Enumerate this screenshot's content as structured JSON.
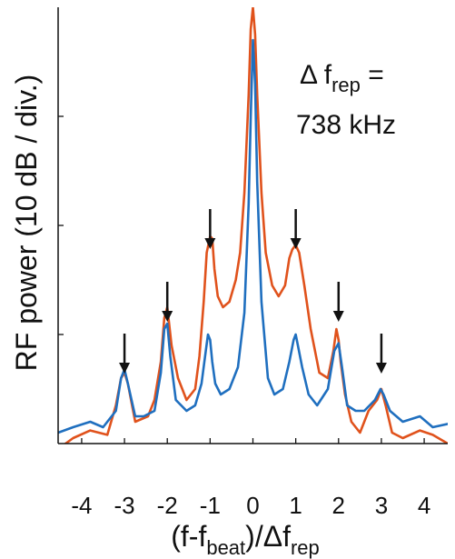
{
  "chart_data": {
    "type": "line",
    "title": "",
    "xlabel": "(f-f_beat)/Δf_rep",
    "ylabel": "RF power (10 dB / div.)",
    "x_ticks": [
      -4,
      -3,
      -2,
      -1,
      0,
      1,
      2,
      3,
      4
    ],
    "xlim": [
      -4.55,
      4.55
    ],
    "ylim": [
      0,
      4
    ],
    "grid": false,
    "legend": "none",
    "annotation": {
      "lines": [
        "Δ f_rep =",
        "738 kHz"
      ]
    },
    "arrows_at_x": [
      -3,
      -2,
      -1,
      1,
      2,
      3
    ],
    "series": [
      {
        "color": "#e0521c",
        "x": [
          -4.55,
          -4.2,
          -3.8,
          -3.4,
          -3.2,
          -3.08,
          -3.0,
          -2.92,
          -2.75,
          -2.45,
          -2.3,
          -2.15,
          -2.07,
          -2.0,
          -1.9,
          -1.75,
          -1.55,
          -1.35,
          -1.25,
          -1.15,
          -1.08,
          -1.0,
          -0.95,
          -0.9,
          -0.82,
          -0.7,
          -0.55,
          -0.4,
          -0.3,
          -0.2,
          -0.1,
          -0.05,
          0.0,
          0.05,
          0.1,
          0.2,
          0.3,
          0.45,
          0.6,
          0.75,
          0.85,
          0.92,
          1.0,
          1.08,
          1.2,
          1.35,
          1.55,
          1.75,
          1.88,
          1.95,
          2.0,
          2.05,
          2.15,
          2.3,
          2.5,
          2.7,
          2.9,
          3.0,
          3.1,
          3.25,
          3.5,
          3.9,
          4.2,
          4.55
        ],
        "y": [
          -0.05,
          0.05,
          0.12,
          0.08,
          0.35,
          0.6,
          0.65,
          0.55,
          0.2,
          0.25,
          0.4,
          0.75,
          1.15,
          1.25,
          0.9,
          0.6,
          0.4,
          0.5,
          0.8,
          1.3,
          1.75,
          1.9,
          1.88,
          1.6,
          1.35,
          1.25,
          1.3,
          1.5,
          1.75,
          2.3,
          3.2,
          3.8,
          4.0,
          3.75,
          3.2,
          2.3,
          1.75,
          1.45,
          1.35,
          1.45,
          1.7,
          1.78,
          1.82,
          1.75,
          1.45,
          1.05,
          0.65,
          0.6,
          0.85,
          1.05,
          0.95,
          0.75,
          0.45,
          0.2,
          0.1,
          0.3,
          0.4,
          0.5,
          0.35,
          0.1,
          0.05,
          0.12,
          0.08,
          0.0
        ]
      },
      {
        "color": "#1f6fbf",
        "x": [
          -4.55,
          -4.2,
          -3.8,
          -3.5,
          -3.2,
          -3.08,
          -3.0,
          -2.92,
          -2.75,
          -2.55,
          -2.3,
          -2.15,
          -2.07,
          -2.0,
          -1.93,
          -1.8,
          -1.55,
          -1.35,
          -1.2,
          -1.1,
          -1.05,
          -1.0,
          -0.95,
          -0.88,
          -0.75,
          -0.55,
          -0.35,
          -0.2,
          -0.1,
          -0.05,
          0.0,
          0.05,
          0.1,
          0.2,
          0.35,
          0.5,
          0.7,
          0.85,
          0.95,
          1.0,
          1.05,
          1.15,
          1.3,
          1.5,
          1.75,
          1.9,
          2.0,
          2.08,
          2.2,
          2.4,
          2.6,
          2.85,
          2.98,
          3.05,
          3.2,
          3.5,
          3.9,
          4.2,
          4.55
        ],
        "y": [
          0.1,
          0.15,
          0.2,
          0.15,
          0.3,
          0.6,
          0.68,
          0.55,
          0.25,
          0.25,
          0.3,
          0.65,
          1.05,
          1.1,
          0.8,
          0.4,
          0.3,
          0.35,
          0.55,
          0.85,
          1.0,
          0.95,
          0.75,
          0.55,
          0.45,
          0.5,
          0.7,
          1.2,
          2.2,
          3.0,
          3.7,
          3.3,
          2.4,
          1.3,
          0.6,
          0.45,
          0.5,
          0.75,
          0.95,
          1.0,
          0.9,
          0.7,
          0.45,
          0.35,
          0.5,
          0.85,
          0.92,
          0.7,
          0.35,
          0.3,
          0.3,
          0.4,
          0.5,
          0.45,
          0.3,
          0.2,
          0.25,
          0.15,
          0.18
        ]
      }
    ]
  }
}
